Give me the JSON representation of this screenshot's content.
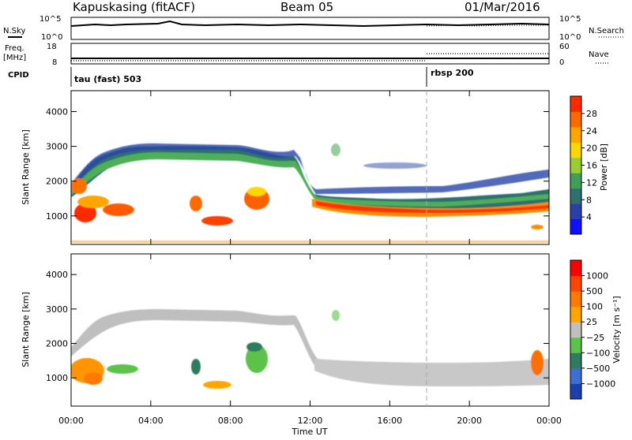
{
  "header": {
    "station": "Kapuskasing (fitACF)",
    "beam": "Beam 05",
    "date": "01/Mar/2016"
  },
  "panels": {
    "nsky_label": "N.Sky",
    "nsearch_label": "N.Search",
    "freq_label": "Freq.",
    "freq_unit": "[MHz]",
    "nave_label": "Nave",
    "cpid_label": "CPID",
    "noise_ticks_left": [
      "10^5",
      "10^0"
    ],
    "noise_ticks_right": [
      "10^5",
      "10^0"
    ],
    "freq_ticks_left": [
      "18",
      "8"
    ],
    "nave_ticks_right": [
      "60",
      "0"
    ],
    "cpid_segments": [
      {
        "label": "tau (fast) 503",
        "start_hour": 0
      },
      {
        "label": "rbsp 200",
        "start_hour": 18.0
      }
    ]
  },
  "chart_data": [
    {
      "type": "heatmap",
      "title": "",
      "xlabel": "",
      "ylabel": "Slant Range [km]",
      "x_range_hours": [
        0,
        24
      ],
      "ylim": [
        180,
        4600
      ],
      "yticks": [
        1000,
        2000,
        3000,
        4000
      ],
      "colorbar": {
        "label": "Power [dB]",
        "ticks": [
          "4",
          "8",
          "12",
          "16",
          "20",
          "24",
          "28"
        ],
        "colors": [
          "#1010ff",
          "#2c3fa8",
          "#2f6f6f",
          "#3f9f5a",
          "#9acd32",
          "#ffd700",
          "#ffa500",
          "#ff6a00",
          "#ff2a00"
        ]
      }
    },
    {
      "type": "heatmap",
      "title": "",
      "xlabel": "Time UT",
      "ylabel": "Slant Range [km]",
      "x_range_hours": [
        0,
        24
      ],
      "ylim": [
        180,
        4600
      ],
      "yticks": [
        1000,
        2000,
        3000,
        4000
      ],
      "xticks": [
        "00:00",
        "04:00",
        "08:00",
        "12:00",
        "16:00",
        "20:00",
        "00:00"
      ],
      "colorbar": {
        "label": "Velocity [m s⁻¹]",
        "ticks": [
          "1000",
          "500",
          "100",
          "25",
          "−25",
          "−100",
          "−500",
          "−1000"
        ],
        "colors": [
          "#1c3fb0",
          "#3c6fd0",
          "#2e7b5f",
          "#5bc24a",
          "#c0c0c0",
          "#ffa500",
          "#ff7a00",
          "#ff4500",
          "#ff0000"
        ]
      }
    }
  ]
}
